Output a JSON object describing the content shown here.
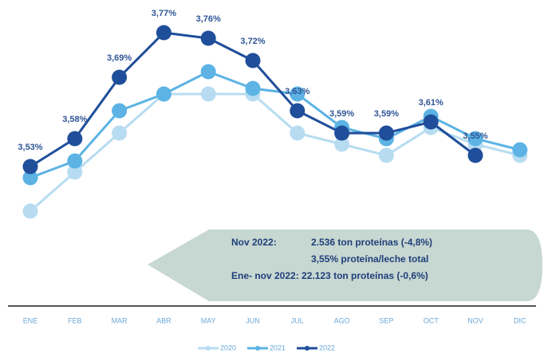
{
  "chart_data": {
    "type": "line",
    "categories": [
      "ENE",
      "FEB",
      "MAR",
      "ABR",
      "MAY",
      "JUN",
      "JUL",
      "AGO",
      "SEP",
      "OCT",
      "NOV",
      "DIC"
    ],
    "series": [
      {
        "name": "2020",
        "color": "#b7dcf1",
        "values": [
          3.45,
          3.52,
          3.59,
          3.66,
          3.66,
          3.66,
          3.59,
          3.57,
          3.55,
          3.6,
          3.57,
          3.55
        ]
      },
      {
        "name": "2021",
        "color": "#5cb3e4",
        "values": [
          3.51,
          3.54,
          3.63,
          3.66,
          3.7,
          3.67,
          3.66,
          3.6,
          3.58,
          3.62,
          3.58,
          3.56
        ]
      },
      {
        "name": "2022",
        "color": "#1f4e9a",
        "values": [
          3.53,
          3.58,
          3.69,
          3.77,
          3.76,
          3.72,
          3.63,
          3.59,
          3.59,
          3.61,
          3.55,
          null
        ],
        "value_labels": [
          "3,53%",
          "3,58%",
          "3,69%",
          "3,77%",
          "3,76%",
          "3,72%",
          "3,63%",
          "3,59%",
          "3,59%",
          "3,61%",
          "3,55%",
          null
        ]
      }
    ],
    "ylim": [
      3.4,
      3.8
    ],
    "annotations": [
      "Nov 2022:",
      "2.536 ton proteínas (-4,8%)",
      "3,55% proteína/leche total",
      "Ene- nov 2022: 22.123 ton proteínas (-0,6%)"
    ],
    "legend": "bottom"
  }
}
